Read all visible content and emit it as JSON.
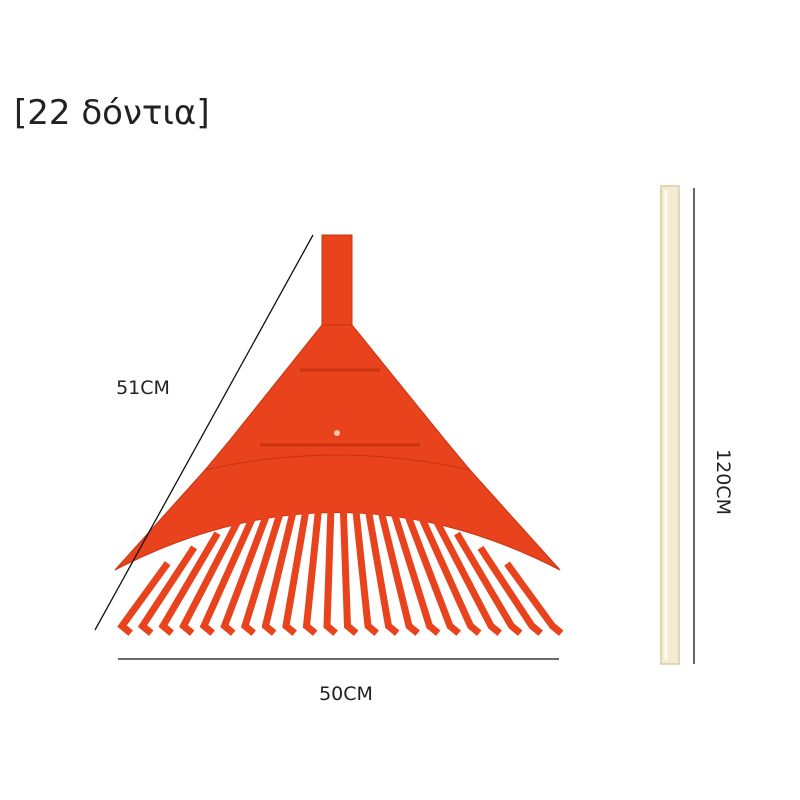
{
  "title": "[22 δόντια]",
  "dimensions": {
    "diagonal": "51CM",
    "width": "50CM",
    "handle": "120CM"
  }
}
